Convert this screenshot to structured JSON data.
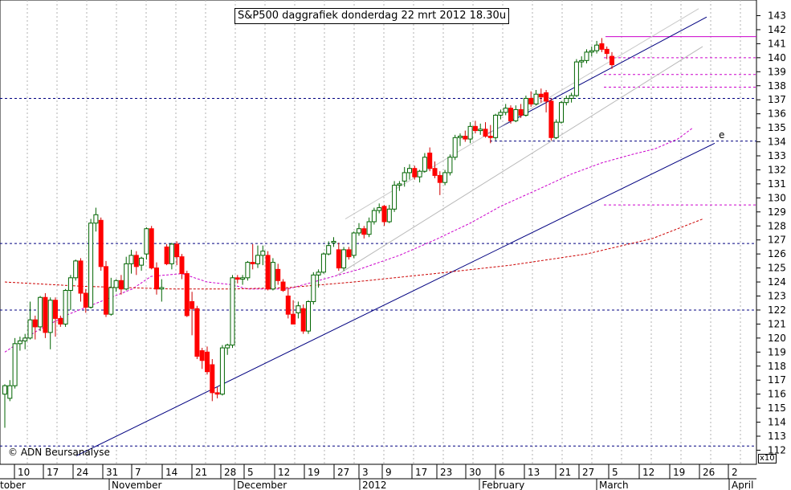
{
  "title": "S&P500 daggrafiek donderdag 22 mrt 2012 18.30u",
  "credit": "© ADN Beursanalyse",
  "scale_note": "x10",
  "chart_data": {
    "type": "candlestick",
    "y_axis": {
      "side": "right",
      "ticks": [
        112,
        113,
        114,
        115,
        116,
        117,
        118,
        119,
        120,
        121,
        122,
        123,
        124,
        125,
        126,
        127,
        128,
        129,
        130,
        131,
        132,
        133,
        134,
        135,
        136,
        137,
        138,
        139,
        140,
        141,
        142,
        143
      ],
      "ylim": [
        111.5,
        143.5
      ],
      "scale_note": "x10"
    },
    "x_day_labels": [
      "10",
      "17",
      "24",
      "31",
      "7",
      "14",
      "21",
      "28",
      "5",
      "12",
      "19",
      "27",
      "3",
      "9",
      "17",
      "23",
      "30",
      "6",
      "13",
      "21",
      "27",
      "5",
      "12",
      "19",
      "26",
      "2"
    ],
    "x_month_labels": [
      "tober",
      "November",
      "December",
      "2012",
      "February",
      "March",
      "April"
    ],
    "candles": [
      {
        "o": 116,
        "h": 116.7,
        "l": 113.6,
        "c": 116.6
      },
      {
        "o": 115.7,
        "h": 117,
        "l": 115.5,
        "c": 116.6
      },
      {
        "o": 116.6,
        "h": 120,
        "l": 116.4,
        "c": 119.6
      },
      {
        "o": 119.6,
        "h": 120.1,
        "l": 119.1,
        "c": 119.8
      },
      {
        "o": 119.8,
        "h": 120.3,
        "l": 119.2,
        "c": 120
      },
      {
        "o": 120,
        "h": 122.6,
        "l": 119.9,
        "c": 121.3
      },
      {
        "o": 121.3,
        "h": 121.6,
        "l": 119.9,
        "c": 120.8
      },
      {
        "o": 120.8,
        "h": 123,
        "l": 120.5,
        "c": 122.9
      },
      {
        "o": 122.9,
        "h": 123.2,
        "l": 120,
        "c": 120.4
      },
      {
        "o": 120.4,
        "h": 122.9,
        "l": 119.2,
        "c": 122.7
      },
      {
        "o": 122.7,
        "h": 122.9,
        "l": 120.1,
        "c": 121.4
      },
      {
        "o": 121.4,
        "h": 121.6,
        "l": 120.8,
        "c": 121
      },
      {
        "o": 121,
        "h": 123.5,
        "l": 120.8,
        "c": 123.4
      },
      {
        "o": 123.4,
        "h": 124.5,
        "l": 122,
        "c": 124.3
      },
      {
        "o": 124.3,
        "h": 125.6,
        "l": 124.1,
        "c": 125.5
      },
      {
        "o": 125.5,
        "h": 125.7,
        "l": 122.6,
        "c": 123.2
      },
      {
        "o": 123.2,
        "h": 123.5,
        "l": 121.8,
        "c": 122.2
      },
      {
        "o": 122.2,
        "h": 128.5,
        "l": 122.1,
        "c": 128.2
      },
      {
        "o": 128.2,
        "h": 129.3,
        "l": 127.6,
        "c": 128.8
      },
      {
        "o": 128.4,
        "h": 128.6,
        "l": 124.8,
        "c": 125.1
      },
      {
        "o": 125.1,
        "h": 125.5,
        "l": 121.5,
        "c": 121.7
      },
      {
        "o": 121.7,
        "h": 124.3,
        "l": 121.6,
        "c": 123.6
      },
      {
        "o": 123.6,
        "h": 124.2,
        "l": 123.3,
        "c": 124.1
      },
      {
        "o": 124.1,
        "h": 124.5,
        "l": 123.1,
        "c": 123.5
      },
      {
        "o": 123.5,
        "h": 125.8,
        "l": 123.4,
        "c": 125.3
      },
      {
        "o": 125.3,
        "h": 126.3,
        "l": 124.6,
        "c": 125.9
      },
      {
        "o": 125.9,
        "h": 126.2,
        "l": 124.5,
        "c": 125.1
      },
      {
        "o": 125.2,
        "h": 125.8,
        "l": 124.8,
        "c": 125.7
      },
      {
        "o": 126,
        "h": 127.9,
        "l": 125.6,
        "c": 127.8
      },
      {
        "o": 127.8,
        "h": 128,
        "l": 124.9,
        "c": 125
      },
      {
        "o": 125,
        "h": 125.4,
        "l": 123.1,
        "c": 123.5
      },
      {
        "o": 123.5,
        "h": 124.2,
        "l": 122.6,
        "c": 123.6
      },
      {
        "o": 126.5,
        "h": 126.7,
        "l": 125.2,
        "c": 125.3
      },
      {
        "o": 125.3,
        "h": 126.8,
        "l": 124.9,
        "c": 126.7
      },
      {
        "o": 126.7,
        "h": 126.9,
        "l": 125.2,
        "c": 125.8
      },
      {
        "o": 125.8,
        "h": 126,
        "l": 124.2,
        "c": 124.6
      },
      {
        "o": 124.6,
        "h": 124.8,
        "l": 121.5,
        "c": 121.6
      },
      {
        "o": 122.6,
        "h": 123.3,
        "l": 120.2,
        "c": 122.1
      },
      {
        "o": 122.1,
        "h": 122.3,
        "l": 118.5,
        "c": 118.7
      },
      {
        "o": 119.1,
        "h": 119.3,
        "l": 117.8,
        "c": 118.4
      },
      {
        "o": 119,
        "h": 119.4,
        "l": 117.4,
        "c": 117.6
      },
      {
        "o": 118.1,
        "h": 118.5,
        "l": 115.5,
        "c": 116.1
      },
      {
        "o": 116.1,
        "h": 116.5,
        "l": 115.7,
        "c": 116
      },
      {
        "o": 116,
        "h": 119.5,
        "l": 115.9,
        "c": 119.3
      },
      {
        "o": 119.3,
        "h": 119.6,
        "l": 118.8,
        "c": 119.5
      },
      {
        "o": 119.5,
        "h": 124.5,
        "l": 119.3,
        "c": 124.3
      },
      {
        "o": 124.3,
        "h": 124.5,
        "l": 123.9,
        "c": 124.2
      },
      {
        "o": 124.2,
        "h": 124.5,
        "l": 123.8,
        "c": 124.3
      },
      {
        "o": 124.3,
        "h": 125.5,
        "l": 124.1,
        "c": 125.4
      },
      {
        "o": 125.4,
        "h": 126.7,
        "l": 124.9,
        "c": 125.3
      },
      {
        "o": 125.3,
        "h": 126.6,
        "l": 125,
        "c": 125.9
      },
      {
        "o": 125.9,
        "h": 126.6,
        "l": 125.2,
        "c": 126.2
      },
      {
        "o": 125.9,
        "h": 126.2,
        "l": 123.4,
        "c": 123.5
      },
      {
        "o": 123.5,
        "h": 125.7,
        "l": 123.4,
        "c": 125.4
      },
      {
        "o": 124.9,
        "h": 125.3,
        "l": 123.8,
        "c": 124.1
      },
      {
        "o": 124,
        "h": 124.2,
        "l": 123.3,
        "c": 123.4
      },
      {
        "o": 123,
        "h": 123.6,
        "l": 121.4,
        "c": 121.7
      },
      {
        "o": 121.7,
        "h": 122.7,
        "l": 121,
        "c": 121
      },
      {
        "o": 121.8,
        "h": 122.6,
        "l": 121.4,
        "c": 122.3
      },
      {
        "o": 122.1,
        "h": 122.4,
        "l": 120.3,
        "c": 120.5
      },
      {
        "o": 120.5,
        "h": 122.7,
        "l": 120.3,
        "c": 122.6
      },
      {
        "o": 122.6,
        "h": 124.7,
        "l": 122.4,
        "c": 124.5
      },
      {
        "o": 124.5,
        "h": 124.9,
        "l": 123.6,
        "c": 124.7
      },
      {
        "o": 124.7,
        "h": 126.1,
        "l": 124.6,
        "c": 126
      },
      {
        "o": 126,
        "h": 126.9,
        "l": 125.9,
        "c": 126.6
      },
      {
        "o": 126.8,
        "h": 127.2,
        "l": 126.5,
        "c": 126.9
      },
      {
        "o": 126.3,
        "h": 126.8,
        "l": 124.8,
        "c": 125
      },
      {
        "o": 125,
        "h": 126.5,
        "l": 124.8,
        "c": 126.3
      },
      {
        "o": 126.3,
        "h": 126.5,
        "l": 125.6,
        "c": 125.8
      },
      {
        "o": 125.9,
        "h": 127.6,
        "l": 125.7,
        "c": 127.5
      },
      {
        "o": 127.5,
        "h": 128.2,
        "l": 127.3,
        "c": 127.8
      },
      {
        "o": 127.8,
        "h": 128,
        "l": 127.1,
        "c": 127.4
      },
      {
        "o": 127.4,
        "h": 128.6,
        "l": 127.2,
        "c": 128.3
      },
      {
        "o": 128.3,
        "h": 129.3,
        "l": 128.1,
        "c": 129.1
      },
      {
        "o": 129.1,
        "h": 129.6,
        "l": 128.9,
        "c": 129.3
      },
      {
        "o": 129.4,
        "h": 129.5,
        "l": 128,
        "c": 128.3
      },
      {
        "o": 128.3,
        "h": 129.5,
        "l": 128.2,
        "c": 129.2
      },
      {
        "o": 129.2,
        "h": 131.2,
        "l": 129,
        "c": 130.9
      },
      {
        "o": 130.9,
        "h": 131.2,
        "l": 130.5,
        "c": 131
      },
      {
        "o": 131.2,
        "h": 132.2,
        "l": 130.8,
        "c": 131.8
      },
      {
        "o": 131.8,
        "h": 132.4,
        "l": 131.3,
        "c": 132.1
      },
      {
        "o": 132.1,
        "h": 132.3,
        "l": 131.3,
        "c": 131.5
      },
      {
        "o": 131.5,
        "h": 132,
        "l": 131.1,
        "c": 131.9
      },
      {
        "o": 131.9,
        "h": 133.2,
        "l": 131.8,
        "c": 132.9
      },
      {
        "o": 133.2,
        "h": 133.6,
        "l": 131.9,
        "c": 132.1
      },
      {
        "o": 132.1,
        "h": 132.6,
        "l": 131.4,
        "c": 131.6
      },
      {
        "o": 131.6,
        "h": 131.9,
        "l": 130.2,
        "c": 131.1
      },
      {
        "o": 131.1,
        "h": 132,
        "l": 130.9,
        "c": 131.8
      },
      {
        "o": 131.8,
        "h": 133.1,
        "l": 131.6,
        "c": 132.9
      },
      {
        "o": 132.9,
        "h": 134.5,
        "l": 132.7,
        "c": 134.3
      },
      {
        "o": 134.3,
        "h": 134.6,
        "l": 133.7,
        "c": 134.4
      },
      {
        "o": 134.4,
        "h": 134.8,
        "l": 134,
        "c": 134.2
      },
      {
        "o": 134.2,
        "h": 135.4,
        "l": 133.9,
        "c": 135.1
      },
      {
        "o": 135.1,
        "h": 135.5,
        "l": 134.6,
        "c": 134.8
      },
      {
        "o": 134.8,
        "h": 135.3,
        "l": 134.5,
        "c": 134.9
      },
      {
        "o": 134.9,
        "h": 135.4,
        "l": 134.3,
        "c": 134.4
      },
      {
        "o": 134.4,
        "h": 135.2,
        "l": 133.9,
        "c": 134.3
      },
      {
        "o": 134.3,
        "h": 136,
        "l": 134.1,
        "c": 135.9
      },
      {
        "o": 135.9,
        "h": 136.3,
        "l": 135.6,
        "c": 136.1
      },
      {
        "o": 136.1,
        "h": 136.7,
        "l": 135.9,
        "c": 136.4
      },
      {
        "o": 136.4,
        "h": 136.6,
        "l": 135.3,
        "c": 135.5
      },
      {
        "o": 135.5,
        "h": 136.6,
        "l": 135.4,
        "c": 136.3
      },
      {
        "o": 136.3,
        "h": 136.7,
        "l": 135.7,
        "c": 135.9
      },
      {
        "o": 135.9,
        "h": 137.3,
        "l": 135.8,
        "c": 137.1
      },
      {
        "o": 137.1,
        "h": 137.6,
        "l": 136.5,
        "c": 136.7
      },
      {
        "o": 136.7,
        "h": 137.7,
        "l": 136.6,
        "c": 137.4
      },
      {
        "o": 137.4,
        "h": 137.8,
        "l": 136.8,
        "c": 137.2
      },
      {
        "o": 137.5,
        "h": 137.7,
        "l": 136.1,
        "c": 136.9
      },
      {
        "o": 136.9,
        "h": 137.1,
        "l": 134.1,
        "c": 134.3
      },
      {
        "o": 134.3,
        "h": 135.6,
        "l": 134.2,
        "c": 135.4
      },
      {
        "o": 135.4,
        "h": 136.9,
        "l": 135.3,
        "c": 136.8
      },
      {
        "o": 136.8,
        "h": 137.3,
        "l": 136.6,
        "c": 137.1
      },
      {
        "o": 137.1,
        "h": 137.5,
        "l": 136.8,
        "c": 137.3
      },
      {
        "o": 137.3,
        "h": 139.9,
        "l": 137.2,
        "c": 139.7
      },
      {
        "o": 139.7,
        "h": 140.1,
        "l": 139.3,
        "c": 139.8
      },
      {
        "o": 139.8,
        "h": 140.6,
        "l": 139.6,
        "c": 140.4
      },
      {
        "o": 140.4,
        "h": 140.8,
        "l": 140.1,
        "c": 140.5
      },
      {
        "o": 140.5,
        "h": 141.2,
        "l": 140.3,
        "c": 140.9
      },
      {
        "o": 141,
        "h": 141.4,
        "l": 140.4,
        "c": 140.6
      },
      {
        "o": 140.6,
        "h": 140.8,
        "l": 139.9,
        "c": 140.3
      },
      {
        "o": 140.1,
        "h": 140.4,
        "l": 139.2,
        "c": 139.5
      }
    ],
    "moving_average_short": [
      [
        119,
        0
      ],
      [
        120.5,
        6.3
      ],
      [
        121.7,
        12.6
      ],
      [
        122.6,
        18.9
      ],
      [
        123.5,
        25.2
      ],
      [
        124.4,
        28.9
      ],
      [
        124.6,
        35
      ],
      [
        124,
        40
      ],
      [
        123.8,
        45
      ],
      [
        123.5,
        48
      ],
      [
        123.5,
        56
      ],
      [
        124.1,
        62
      ],
      [
        124.9,
        70
      ],
      [
        125.9,
        78
      ],
      [
        127,
        85
      ],
      [
        128.2,
        92
      ],
      [
        129.4,
        98
      ],
      [
        130.7,
        106
      ],
      [
        131.7,
        112
      ],
      [
        132.5,
        118
      ],
      [
        133.1,
        124
      ],
      [
        133.5,
        128.5
      ],
      [
        134.2,
        133
      ],
      [
        135,
        136
      ]
    ],
    "moving_average_long": [
      [
        0,
        124
      ],
      [
        15,
        123.7
      ],
      [
        33,
        123.5
      ],
      [
        45,
        123.5
      ],
      [
        56,
        123.6
      ],
      [
        69,
        124
      ],
      [
        85,
        124.6
      ],
      [
        100,
        125.2
      ],
      [
        115,
        126
      ],
      [
        128,
        127.1
      ],
      [
        138,
        128.5
      ]
    ],
    "horizontal_levels": [
      {
        "value": 137.1,
        "style": "dashed",
        "color": "#000080"
      },
      {
        "value": 134.05,
        "style": "dashed",
        "color": "#000080"
      },
      {
        "value": 126.75,
        "style": "dashed",
        "color": "#000080"
      },
      {
        "value": 122,
        "style": "dashed",
        "color": "#000080"
      },
      {
        "value": 112.3,
        "style": "dashed",
        "color": "#000080"
      },
      {
        "value": 141.5,
        "style": "solid",
        "color": "#cc00cc"
      },
      {
        "value": 140,
        "style": "dashed",
        "color": "#cc00cc"
      },
      {
        "value": 138.8,
        "style": "dashed",
        "color": "#cc00cc"
      },
      {
        "value": 137.9,
        "style": "dashed",
        "color": "#cc00cc"
      },
      {
        "value": 129.5,
        "style": "dashed",
        "color": "#cc00cc"
      }
    ],
    "annotation": "e"
  }
}
